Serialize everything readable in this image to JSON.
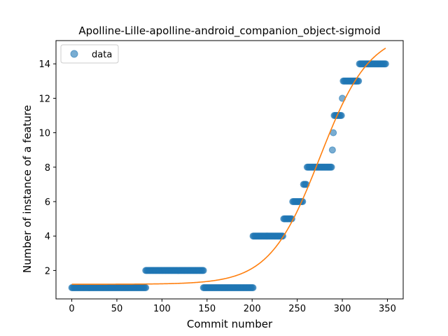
{
  "chart_data": {
    "type": "scatter",
    "title": "Apolline-Lille-apolline-android_companion_object-sigmoid",
    "xlabel": "Commit number",
    "ylabel": "Number of instance of a feature",
    "xlim": [
      -17.5,
      367.5
    ],
    "ylim": [
      0.35,
      15.35
    ],
    "xticks": [
      0,
      50,
      100,
      150,
      200,
      250,
      300,
      350
    ],
    "yticks": [
      2,
      4,
      6,
      8,
      10,
      12,
      14
    ],
    "grid": false,
    "legend": {
      "position": "top-left",
      "entries": [
        "data"
      ]
    },
    "colors": {
      "data": "#1f77b4",
      "fit": "#ff7f0e"
    },
    "series": [
      {
        "name": "data",
        "kind": "points",
        "segments": [
          {
            "x_from": 0,
            "x_to": 82,
            "y": 1
          },
          {
            "x_from": 82,
            "x_to": 146,
            "y": 2
          },
          {
            "x_from": 146,
            "x_to": 201,
            "y": 1
          },
          {
            "x_from": 201,
            "x_to": 234,
            "y": 4
          },
          {
            "x_from": 235,
            "x_to": 244,
            "y": 5
          },
          {
            "x_from": 245,
            "x_to": 256,
            "y": 6
          },
          {
            "x_from": 257,
            "x_to": 260,
            "y": 7
          },
          {
            "x_from": 261,
            "x_to": 288,
            "y": 8
          },
          {
            "x_from": 289,
            "x_to": 289,
            "y": 9
          },
          {
            "x_from": 290,
            "x_to": 290,
            "y": 10
          },
          {
            "x_from": 291,
            "x_to": 299,
            "y": 11
          },
          {
            "x_from": 300,
            "x_to": 300,
            "y": 12
          },
          {
            "x_from": 301,
            "x_to": 318,
            "y": 13
          },
          {
            "x_from": 319,
            "x_to": 348,
            "y": 14
          }
        ]
      },
      {
        "kind": "sigmoid-fit",
        "x_range": [
          0,
          348
        ],
        "lower": 1.2,
        "upper": 15.9,
        "midpoint": 275,
        "rate": 0.036
      }
    ]
  }
}
